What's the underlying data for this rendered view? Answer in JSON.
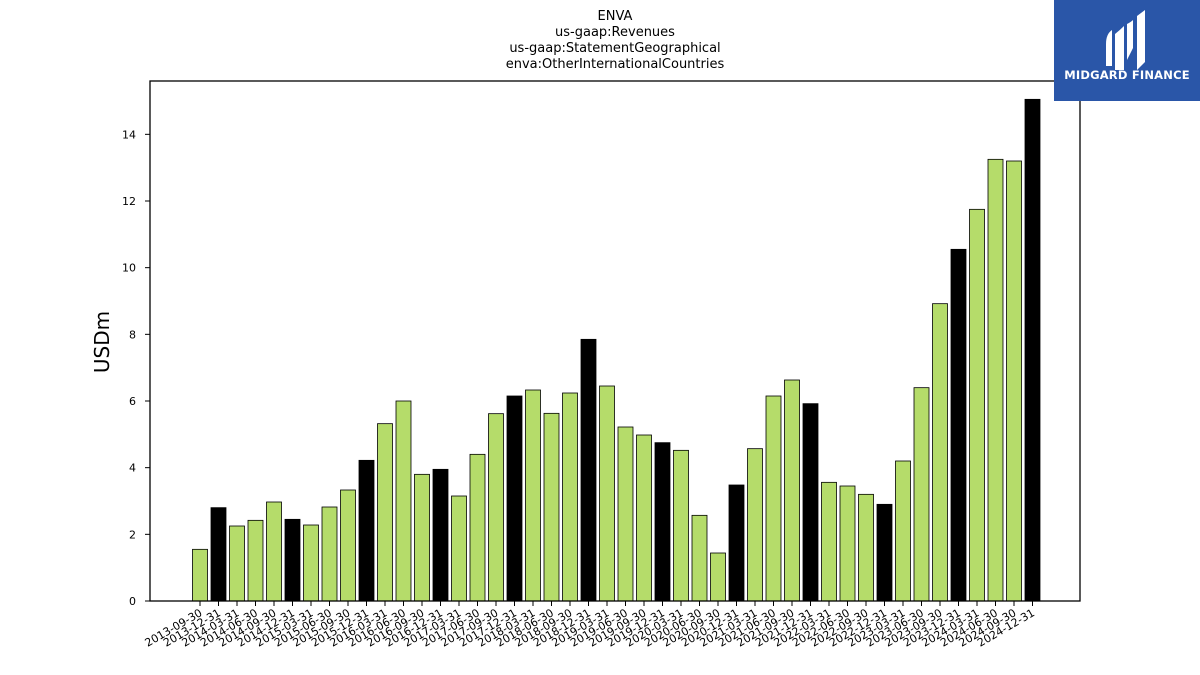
{
  "chart_data": {
    "type": "bar",
    "title_lines": [
      "ENVA",
      "us-gaap:Revenues",
      "us-gaap:StatementGeographical",
      "enva:OtherInternationalCountries"
    ],
    "ylabel": "USDm",
    "ylim": [
      0,
      15.6
    ],
    "yticks": [
      "0",
      "2",
      "4",
      "6",
      "8",
      "10",
      "12",
      "14"
    ],
    "grid": false,
    "colors": {
      "quarter": "#b5dc6a",
      "year_end": "#000000",
      "edge": "#000000"
    },
    "categories": [
      "2013-09-30",
      "2013-12-31",
      "2014-03-31",
      "2014-06-30",
      "2014-09-30",
      "2014-12-31",
      "2015-03-31",
      "2015-06-30",
      "2015-09-30",
      "2015-12-31",
      "2016-03-31",
      "2016-06-30",
      "2016-09-30",
      "2016-12-31",
      "2017-03-31",
      "2017-06-30",
      "2017-09-30",
      "2017-12-31",
      "2018-03-31",
      "2018-06-30",
      "2018-09-30",
      "2018-12-31",
      "2019-03-31",
      "2019-06-30",
      "2019-09-30",
      "2019-12-31",
      "2020-03-31",
      "2020-06-30",
      "2020-09-30",
      "2020-12-31",
      "2021-03-31",
      "2021-06-30",
      "2021-09-30",
      "2021-12-31",
      "2022-03-31",
      "2022-06-30",
      "2022-09-30",
      "2022-12-31",
      "2023-03-31",
      "2023-06-30",
      "2023-09-30",
      "2023-12-31",
      "2024-03-31",
      "2024-06-30",
      "2024-09-30",
      "2024-12-31"
    ],
    "values": [
      1.55,
      2.8,
      2.25,
      2.42,
      2.97,
      2.45,
      2.28,
      2.82,
      3.33,
      4.22,
      5.32,
      6.0,
      3.8,
      3.95,
      3.15,
      4.4,
      5.62,
      6.15,
      6.33,
      5.63,
      6.24,
      7.85,
      6.45,
      5.22,
      4.98,
      4.75,
      4.52,
      2.57,
      1.44,
      3.48,
      4.57,
      6.15,
      6.63,
      5.92,
      3.56,
      3.45,
      3.2,
      2.9,
      4.2,
      6.4,
      8.92,
      10.55,
      11.75,
      13.25,
      13.2,
      15.05
    ],
    "year_end": [
      false,
      true,
      false,
      false,
      false,
      true,
      false,
      false,
      false,
      true,
      false,
      false,
      false,
      true,
      false,
      false,
      false,
      true,
      false,
      false,
      false,
      true,
      false,
      false,
      false,
      true,
      false,
      false,
      false,
      true,
      false,
      false,
      false,
      true,
      false,
      false,
      false,
      true,
      false,
      false,
      false,
      true,
      false,
      false,
      false,
      true
    ]
  },
  "logo": {
    "text": "MIDGARD FINANCE"
  }
}
